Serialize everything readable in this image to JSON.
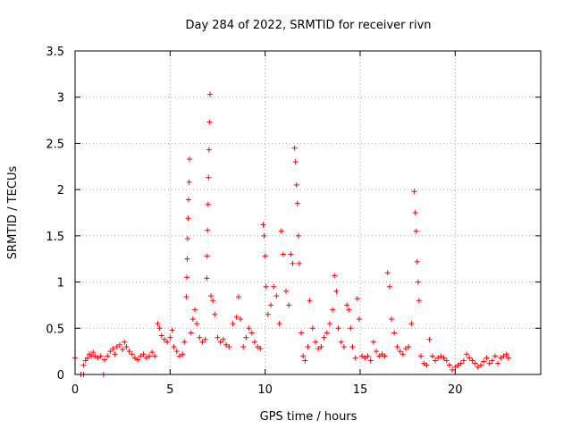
{
  "chart_data": {
    "type": "scatter",
    "title": "Day 284 of 2022, SRMTID for receiver rivn",
    "xlabel": "GPS time / hours",
    "ylabel": "SRMTID / TECUs",
    "xlim": [
      0,
      24.5
    ],
    "ylim": [
      0,
      3.5
    ],
    "grid": true,
    "marker": "+",
    "xticks": [
      0,
      5,
      10,
      15,
      20
    ],
    "xtick_labels": [
      "0",
      "5",
      "10",
      "15",
      "20"
    ],
    "yticks": [
      0,
      0.5,
      1,
      1.5,
      2,
      2.5,
      3,
      3.5
    ],
    "ytick_labels": [
      "0",
      "0.5",
      "1",
      "1.5",
      "2",
      "2.5",
      "3",
      "3.5"
    ],
    "series": [
      {
        "name": "SRMTID",
        "color": "#ff0000",
        "points": [
          [
            0.0,
            0.18
          ],
          [
            0.3,
            0.0
          ],
          [
            0.45,
            0.0
          ],
          [
            0.45,
            0.1
          ],
          [
            0.55,
            0.15
          ],
          [
            0.65,
            0.18
          ],
          [
            0.75,
            0.22
          ],
          [
            0.85,
            0.2
          ],
          [
            0.95,
            0.24
          ],
          [
            1.05,
            0.2
          ],
          [
            1.2,
            0.18
          ],
          [
            1.35,
            0.2
          ],
          [
            1.5,
            0.0
          ],
          [
            1.55,
            0.16
          ],
          [
            1.7,
            0.2
          ],
          [
            1.85,
            0.25
          ],
          [
            2.0,
            0.28
          ],
          [
            2.1,
            0.22
          ],
          [
            2.2,
            0.3
          ],
          [
            2.35,
            0.32
          ],
          [
            2.5,
            0.27
          ],
          [
            2.6,
            0.35
          ],
          [
            2.7,
            0.3
          ],
          [
            2.85,
            0.25
          ],
          [
            3.0,
            0.22
          ],
          [
            3.15,
            0.18
          ],
          [
            3.3,
            0.16
          ],
          [
            3.45,
            0.2
          ],
          [
            3.6,
            0.22
          ],
          [
            3.75,
            0.18
          ],
          [
            3.9,
            0.2
          ],
          [
            4.05,
            0.24
          ],
          [
            4.2,
            0.2
          ],
          [
            4.35,
            0.55
          ],
          [
            4.45,
            0.5
          ],
          [
            4.55,
            0.42
          ],
          [
            4.7,
            0.38
          ],
          [
            4.85,
            0.35
          ],
          [
            5.0,
            0.4
          ],
          [
            5.1,
            0.48
          ],
          [
            5.2,
            0.3
          ],
          [
            5.35,
            0.25
          ],
          [
            5.5,
            0.2
          ],
          [
            5.65,
            0.22
          ],
          [
            5.75,
            0.35
          ],
          [
            5.85,
            0.84
          ],
          [
            5.88,
            1.05
          ],
          [
            5.9,
            1.25
          ],
          [
            5.92,
            1.47
          ],
          [
            5.95,
            1.69
          ],
          [
            5.97,
            1.89
          ],
          [
            6.0,
            2.08
          ],
          [
            6.02,
            2.33
          ],
          [
            6.1,
            0.45
          ],
          [
            6.2,
            0.6
          ],
          [
            6.3,
            0.7
          ],
          [
            6.4,
            0.55
          ],
          [
            6.55,
            0.4
          ],
          [
            6.7,
            0.35
          ],
          [
            6.85,
            0.38
          ],
          [
            6.93,
            1.04
          ],
          [
            6.95,
            1.28
          ],
          [
            6.97,
            1.56
          ],
          [
            7.0,
            1.84
          ],
          [
            7.02,
            2.13
          ],
          [
            7.05,
            2.43
          ],
          [
            7.07,
            2.73
          ],
          [
            7.1,
            3.03
          ],
          [
            7.15,
            0.85
          ],
          [
            7.25,
            0.8
          ],
          [
            7.35,
            0.65
          ],
          [
            7.5,
            0.4
          ],
          [
            7.65,
            0.35
          ],
          [
            7.8,
            0.38
          ],
          [
            7.95,
            0.32
          ],
          [
            8.1,
            0.3
          ],
          [
            8.3,
            0.55
          ],
          [
            8.5,
            0.62
          ],
          [
            8.6,
            0.84
          ],
          [
            8.7,
            0.6
          ],
          [
            8.85,
            0.3
          ],
          [
            9.0,
            0.4
          ],
          [
            9.15,
            0.5
          ],
          [
            9.3,
            0.45
          ],
          [
            9.45,
            0.35
          ],
          [
            9.6,
            0.3
          ],
          [
            9.75,
            0.28
          ],
          [
            9.9,
            1.62
          ],
          [
            9.95,
            1.5
          ],
          [
            10.0,
            1.28
          ],
          [
            10.05,
            0.95
          ],
          [
            10.15,
            0.65
          ],
          [
            10.3,
            0.75
          ],
          [
            10.45,
            0.95
          ],
          [
            10.6,
            0.85
          ],
          [
            10.75,
            0.55
          ],
          [
            10.85,
            1.55
          ],
          [
            10.95,
            1.3
          ],
          [
            11.1,
            0.9
          ],
          [
            11.25,
            0.75
          ],
          [
            11.35,
            1.3
          ],
          [
            11.45,
            1.2
          ],
          [
            11.55,
            2.45
          ],
          [
            11.6,
            2.3
          ],
          [
            11.65,
            2.05
          ],
          [
            11.7,
            1.85
          ],
          [
            11.75,
            1.5
          ],
          [
            11.8,
            1.2
          ],
          [
            11.9,
            0.45
          ],
          [
            12.0,
            0.2
          ],
          [
            12.1,
            0.15
          ],
          [
            12.25,
            0.3
          ],
          [
            12.35,
            0.8
          ],
          [
            12.5,
            0.5
          ],
          [
            12.65,
            0.35
          ],
          [
            12.8,
            0.28
          ],
          [
            12.95,
            0.3
          ],
          [
            13.1,
            0.4
          ],
          [
            13.25,
            0.45
          ],
          [
            13.4,
            0.55
          ],
          [
            13.55,
            0.7
          ],
          [
            13.65,
            1.07
          ],
          [
            13.75,
            0.9
          ],
          [
            13.85,
            0.5
          ],
          [
            14.0,
            0.35
          ],
          [
            14.15,
            0.3
          ],
          [
            14.3,
            0.75
          ],
          [
            14.4,
            0.7
          ],
          [
            14.5,
            0.5
          ],
          [
            14.6,
            0.3
          ],
          [
            14.75,
            0.18
          ],
          [
            14.85,
            0.82
          ],
          [
            14.95,
            0.6
          ],
          [
            15.1,
            0.2
          ],
          [
            15.25,
            0.18
          ],
          [
            15.4,
            0.2
          ],
          [
            15.55,
            0.15
          ],
          [
            15.7,
            0.35
          ],
          [
            15.85,
            0.25
          ],
          [
            16.0,
            0.2
          ],
          [
            16.15,
            0.22
          ],
          [
            16.3,
            0.2
          ],
          [
            16.45,
            1.1
          ],
          [
            16.55,
            0.95
          ],
          [
            16.65,
            0.6
          ],
          [
            16.8,
            0.45
          ],
          [
            16.95,
            0.3
          ],
          [
            17.1,
            0.25
          ],
          [
            17.25,
            0.22
          ],
          [
            17.4,
            0.28
          ],
          [
            17.55,
            0.3
          ],
          [
            17.7,
            0.55
          ],
          [
            17.85,
            1.98
          ],
          [
            17.9,
            1.75
          ],
          [
            17.95,
            1.55
          ],
          [
            18.0,
            1.22
          ],
          [
            18.05,
            1.0
          ],
          [
            18.1,
            0.8
          ],
          [
            18.2,
            0.2
          ],
          [
            18.35,
            0.12
          ],
          [
            18.5,
            0.1
          ],
          [
            18.65,
            0.38
          ],
          [
            18.8,
            0.2
          ],
          [
            18.95,
            0.15
          ],
          [
            19.1,
            0.18
          ],
          [
            19.25,
            0.2
          ],
          [
            19.4,
            0.18
          ],
          [
            19.55,
            0.15
          ],
          [
            19.7,
            0.1
          ],
          [
            19.85,
            0.05
          ],
          [
            20.0,
            0.08
          ],
          [
            20.15,
            0.1
          ],
          [
            20.3,
            0.12
          ],
          [
            20.45,
            0.15
          ],
          [
            20.6,
            0.22
          ],
          [
            20.75,
            0.18
          ],
          [
            20.9,
            0.15
          ],
          [
            21.05,
            0.12
          ],
          [
            21.2,
            0.08
          ],
          [
            21.35,
            0.1
          ],
          [
            21.5,
            0.14
          ],
          [
            21.65,
            0.18
          ],
          [
            21.8,
            0.12
          ],
          [
            21.95,
            0.15
          ],
          [
            22.1,
            0.2
          ],
          [
            22.25,
            0.12
          ],
          [
            22.4,
            0.18
          ],
          [
            22.55,
            0.2
          ],
          [
            22.7,
            0.22
          ],
          [
            22.8,
            0.18
          ]
        ]
      }
    ]
  }
}
